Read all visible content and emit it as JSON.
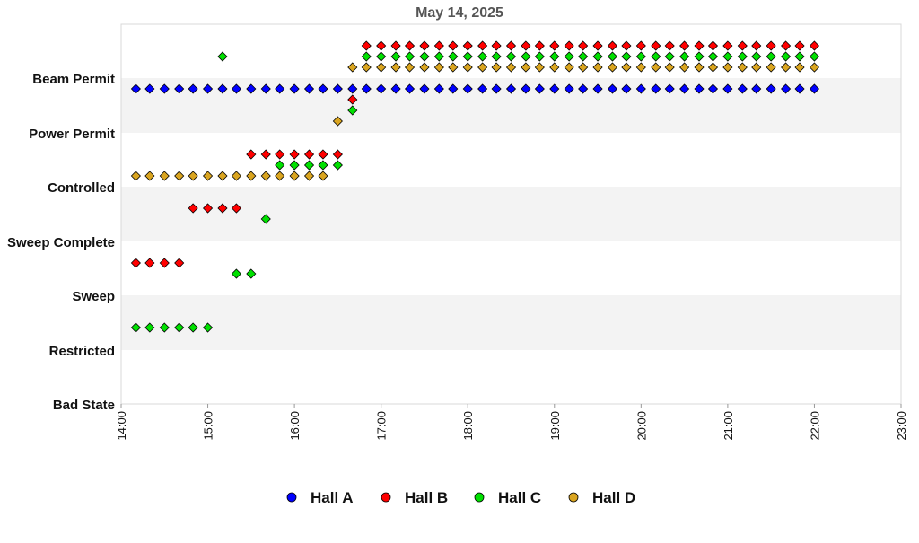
{
  "chart_data": {
    "type": "scatter",
    "title": "May 14, 2025",
    "xlabel": "",
    "ylabel": "",
    "x_ticks": [
      "14:00",
      "15:00",
      "16:00",
      "17:00",
      "18:00",
      "19:00",
      "20:00",
      "21:00",
      "22:00",
      "23:00"
    ],
    "xlim": [
      14,
      23
    ],
    "y_categories": [
      "Bad State",
      "Restricted",
      "Sweep",
      "Sweep Complete",
      "Controlled",
      "Power Permit",
      "Beam Permit"
    ],
    "grid": "alternating horizontal bands",
    "legend_position": "bottom",
    "series": [
      {
        "name": "Hall A",
        "color": "#0000ff",
        "points": [
          {
            "x": 14.17,
            "y": "Power Permit"
          },
          {
            "x": 14.33,
            "y": "Power Permit"
          },
          {
            "x": 14.5,
            "y": "Power Permit"
          },
          {
            "x": 14.67,
            "y": "Power Permit"
          },
          {
            "x": 14.83,
            "y": "Power Permit"
          },
          {
            "x": 15.0,
            "y": "Power Permit"
          },
          {
            "x": 15.17,
            "y": "Power Permit"
          },
          {
            "x": 15.33,
            "y": "Power Permit"
          },
          {
            "x": 15.5,
            "y": "Power Permit"
          },
          {
            "x": 15.67,
            "y": "Power Permit"
          },
          {
            "x": 15.83,
            "y": "Power Permit"
          },
          {
            "x": 16.0,
            "y": "Power Permit"
          },
          {
            "x": 16.17,
            "y": "Power Permit"
          },
          {
            "x": 16.33,
            "y": "Power Permit"
          },
          {
            "x": 16.5,
            "y": "Power Permit"
          },
          {
            "x": 16.67,
            "y": "Power Permit"
          },
          {
            "x": 16.83,
            "y": "Power Permit"
          },
          {
            "x": 17.0,
            "y": "Power Permit"
          },
          {
            "x": 17.17,
            "y": "Power Permit"
          },
          {
            "x": 17.33,
            "y": "Power Permit"
          },
          {
            "x": 17.5,
            "y": "Power Permit"
          },
          {
            "x": 17.67,
            "y": "Power Permit"
          },
          {
            "x": 17.83,
            "y": "Power Permit"
          },
          {
            "x": 18.0,
            "y": "Power Permit"
          },
          {
            "x": 18.17,
            "y": "Power Permit"
          },
          {
            "x": 18.33,
            "y": "Power Permit"
          },
          {
            "x": 18.5,
            "y": "Power Permit"
          },
          {
            "x": 18.67,
            "y": "Power Permit"
          },
          {
            "x": 18.83,
            "y": "Power Permit"
          },
          {
            "x": 19.0,
            "y": "Power Permit"
          },
          {
            "x": 19.17,
            "y": "Power Permit"
          },
          {
            "x": 19.33,
            "y": "Power Permit"
          },
          {
            "x": 19.5,
            "y": "Power Permit"
          },
          {
            "x": 19.67,
            "y": "Power Permit"
          },
          {
            "x": 19.83,
            "y": "Power Permit"
          },
          {
            "x": 20.0,
            "y": "Power Permit"
          },
          {
            "x": 20.17,
            "y": "Power Permit"
          },
          {
            "x": 20.33,
            "y": "Power Permit"
          },
          {
            "x": 20.5,
            "y": "Power Permit"
          },
          {
            "x": 20.67,
            "y": "Power Permit"
          },
          {
            "x": 20.83,
            "y": "Power Permit"
          },
          {
            "x": 21.0,
            "y": "Power Permit"
          },
          {
            "x": 21.17,
            "y": "Power Permit"
          },
          {
            "x": 21.33,
            "y": "Power Permit"
          },
          {
            "x": 21.5,
            "y": "Power Permit"
          },
          {
            "x": 21.67,
            "y": "Power Permit"
          },
          {
            "x": 21.83,
            "y": "Power Permit"
          },
          {
            "x": 22.0,
            "y": "Power Permit"
          }
        ]
      },
      {
        "name": "Hall B",
        "color": "#ff0000",
        "points": [
          {
            "x": 14.17,
            "y": "Sweep"
          },
          {
            "x": 14.33,
            "y": "Sweep"
          },
          {
            "x": 14.5,
            "y": "Sweep"
          },
          {
            "x": 14.67,
            "y": "Sweep"
          },
          {
            "x": 14.83,
            "y": "Sweep Complete"
          },
          {
            "x": 15.0,
            "y": "Sweep Complete"
          },
          {
            "x": 15.17,
            "y": "Sweep Complete"
          },
          {
            "x": 15.33,
            "y": "Sweep Complete"
          },
          {
            "x": 15.5,
            "y": "Controlled"
          },
          {
            "x": 15.67,
            "y": "Controlled"
          },
          {
            "x": 15.83,
            "y": "Controlled"
          },
          {
            "x": 16.0,
            "y": "Controlled"
          },
          {
            "x": 16.17,
            "y": "Controlled"
          },
          {
            "x": 16.33,
            "y": "Controlled"
          },
          {
            "x": 16.5,
            "y": "Controlled"
          },
          {
            "x": 16.67,
            "y": "Power Permit"
          },
          {
            "x": 16.83,
            "y": "Beam Permit"
          },
          {
            "x": 17.0,
            "y": "Beam Permit"
          },
          {
            "x": 17.17,
            "y": "Beam Permit"
          },
          {
            "x": 17.33,
            "y": "Beam Permit"
          },
          {
            "x": 17.5,
            "y": "Beam Permit"
          },
          {
            "x": 17.67,
            "y": "Beam Permit"
          },
          {
            "x": 17.83,
            "y": "Beam Permit"
          },
          {
            "x": 18.0,
            "y": "Beam Permit"
          },
          {
            "x": 18.17,
            "y": "Beam Permit"
          },
          {
            "x": 18.33,
            "y": "Beam Permit"
          },
          {
            "x": 18.5,
            "y": "Beam Permit"
          },
          {
            "x": 18.67,
            "y": "Beam Permit"
          },
          {
            "x": 18.83,
            "y": "Beam Permit"
          },
          {
            "x": 19.0,
            "y": "Beam Permit"
          },
          {
            "x": 19.17,
            "y": "Beam Permit"
          },
          {
            "x": 19.33,
            "y": "Beam Permit"
          },
          {
            "x": 19.5,
            "y": "Beam Permit"
          },
          {
            "x": 19.67,
            "y": "Beam Permit"
          },
          {
            "x": 19.83,
            "y": "Beam Permit"
          },
          {
            "x": 20.0,
            "y": "Beam Permit"
          },
          {
            "x": 20.17,
            "y": "Beam Permit"
          },
          {
            "x": 20.33,
            "y": "Beam Permit"
          },
          {
            "x": 20.5,
            "y": "Beam Permit"
          },
          {
            "x": 20.67,
            "y": "Beam Permit"
          },
          {
            "x": 20.83,
            "y": "Beam Permit"
          },
          {
            "x": 21.0,
            "y": "Beam Permit"
          },
          {
            "x": 21.17,
            "y": "Beam Permit"
          },
          {
            "x": 21.33,
            "y": "Beam Permit"
          },
          {
            "x": 21.5,
            "y": "Beam Permit"
          },
          {
            "x": 21.67,
            "y": "Beam Permit"
          },
          {
            "x": 21.83,
            "y": "Beam Permit"
          },
          {
            "x": 22.0,
            "y": "Beam Permit"
          }
        ]
      },
      {
        "name": "Hall C",
        "color": "#00e000",
        "points": [
          {
            "x": 14.17,
            "y": "Restricted"
          },
          {
            "x": 14.33,
            "y": "Restricted"
          },
          {
            "x": 14.5,
            "y": "Restricted"
          },
          {
            "x": 14.67,
            "y": "Restricted"
          },
          {
            "x": 14.83,
            "y": "Restricted"
          },
          {
            "x": 15.0,
            "y": "Restricted"
          },
          {
            "x": 15.17,
            "y": "Beam Permit"
          },
          {
            "x": 15.33,
            "y": "Sweep"
          },
          {
            "x": 15.5,
            "y": "Sweep"
          },
          {
            "x": 15.67,
            "y": "Sweep Complete"
          },
          {
            "x": 15.83,
            "y": "Controlled"
          },
          {
            "x": 16.0,
            "y": "Controlled"
          },
          {
            "x": 16.17,
            "y": "Controlled"
          },
          {
            "x": 16.33,
            "y": "Controlled"
          },
          {
            "x": 16.5,
            "y": "Controlled"
          },
          {
            "x": 16.67,
            "y": "Power Permit"
          },
          {
            "x": 16.83,
            "y": "Beam Permit"
          },
          {
            "x": 17.0,
            "y": "Beam Permit"
          },
          {
            "x": 17.17,
            "y": "Beam Permit"
          },
          {
            "x": 17.33,
            "y": "Beam Permit"
          },
          {
            "x": 17.5,
            "y": "Beam Permit"
          },
          {
            "x": 17.67,
            "y": "Beam Permit"
          },
          {
            "x": 17.83,
            "y": "Beam Permit"
          },
          {
            "x": 18.0,
            "y": "Beam Permit"
          },
          {
            "x": 18.17,
            "y": "Beam Permit"
          },
          {
            "x": 18.33,
            "y": "Beam Permit"
          },
          {
            "x": 18.5,
            "y": "Beam Permit"
          },
          {
            "x": 18.67,
            "y": "Beam Permit"
          },
          {
            "x": 18.83,
            "y": "Beam Permit"
          },
          {
            "x": 19.0,
            "y": "Beam Permit"
          },
          {
            "x": 19.17,
            "y": "Beam Permit"
          },
          {
            "x": 19.33,
            "y": "Beam Permit"
          },
          {
            "x": 19.5,
            "y": "Beam Permit"
          },
          {
            "x": 19.67,
            "y": "Beam Permit"
          },
          {
            "x": 19.83,
            "y": "Beam Permit"
          },
          {
            "x": 20.0,
            "y": "Beam Permit"
          },
          {
            "x": 20.17,
            "y": "Beam Permit"
          },
          {
            "x": 20.33,
            "y": "Beam Permit"
          },
          {
            "x": 20.5,
            "y": "Beam Permit"
          },
          {
            "x": 20.67,
            "y": "Beam Permit"
          },
          {
            "x": 20.83,
            "y": "Beam Permit"
          },
          {
            "x": 21.0,
            "y": "Beam Permit"
          },
          {
            "x": 21.17,
            "y": "Beam Permit"
          },
          {
            "x": 21.33,
            "y": "Beam Permit"
          },
          {
            "x": 21.5,
            "y": "Beam Permit"
          },
          {
            "x": 21.67,
            "y": "Beam Permit"
          },
          {
            "x": 21.83,
            "y": "Beam Permit"
          },
          {
            "x": 22.0,
            "y": "Beam Permit"
          }
        ]
      },
      {
        "name": "Hall D",
        "color": "#daa520",
        "points": [
          {
            "x": 14.17,
            "y": "Controlled"
          },
          {
            "x": 14.33,
            "y": "Controlled"
          },
          {
            "x": 14.5,
            "y": "Controlled"
          },
          {
            "x": 14.67,
            "y": "Controlled"
          },
          {
            "x": 14.83,
            "y": "Controlled"
          },
          {
            "x": 15.0,
            "y": "Controlled"
          },
          {
            "x": 15.17,
            "y": "Controlled"
          },
          {
            "x": 15.33,
            "y": "Controlled"
          },
          {
            "x": 15.5,
            "y": "Controlled"
          },
          {
            "x": 15.67,
            "y": "Controlled"
          },
          {
            "x": 15.83,
            "y": "Controlled"
          },
          {
            "x": 16.0,
            "y": "Controlled"
          },
          {
            "x": 16.17,
            "y": "Controlled"
          },
          {
            "x": 16.33,
            "y": "Controlled"
          },
          {
            "x": 16.5,
            "y": "Power Permit"
          },
          {
            "x": 16.67,
            "y": "Beam Permit"
          },
          {
            "x": 16.83,
            "y": "Beam Permit"
          },
          {
            "x": 17.0,
            "y": "Beam Permit"
          },
          {
            "x": 17.17,
            "y": "Beam Permit"
          },
          {
            "x": 17.33,
            "y": "Beam Permit"
          },
          {
            "x": 17.5,
            "y": "Beam Permit"
          },
          {
            "x": 17.67,
            "y": "Beam Permit"
          },
          {
            "x": 17.83,
            "y": "Beam Permit"
          },
          {
            "x": 18.0,
            "y": "Beam Permit"
          },
          {
            "x": 18.17,
            "y": "Beam Permit"
          },
          {
            "x": 18.33,
            "y": "Beam Permit"
          },
          {
            "x": 18.5,
            "y": "Beam Permit"
          },
          {
            "x": 18.67,
            "y": "Beam Permit"
          },
          {
            "x": 18.83,
            "y": "Beam Permit"
          },
          {
            "x": 19.0,
            "y": "Beam Permit"
          },
          {
            "x": 19.17,
            "y": "Beam Permit"
          },
          {
            "x": 19.33,
            "y": "Beam Permit"
          },
          {
            "x": 19.5,
            "y": "Beam Permit"
          },
          {
            "x": 19.67,
            "y": "Beam Permit"
          },
          {
            "x": 19.83,
            "y": "Beam Permit"
          },
          {
            "x": 20.0,
            "y": "Beam Permit"
          },
          {
            "x": 20.17,
            "y": "Beam Permit"
          },
          {
            "x": 20.33,
            "y": "Beam Permit"
          },
          {
            "x": 20.5,
            "y": "Beam Permit"
          },
          {
            "x": 20.67,
            "y": "Beam Permit"
          },
          {
            "x": 20.83,
            "y": "Beam Permit"
          },
          {
            "x": 21.0,
            "y": "Beam Permit"
          },
          {
            "x": 21.17,
            "y": "Beam Permit"
          },
          {
            "x": 21.33,
            "y": "Beam Permit"
          },
          {
            "x": 21.5,
            "y": "Beam Permit"
          },
          {
            "x": 21.67,
            "y": "Beam Permit"
          },
          {
            "x": 21.83,
            "y": "Beam Permit"
          },
          {
            "x": 22.0,
            "y": "Beam Permit"
          }
        ]
      }
    ]
  }
}
